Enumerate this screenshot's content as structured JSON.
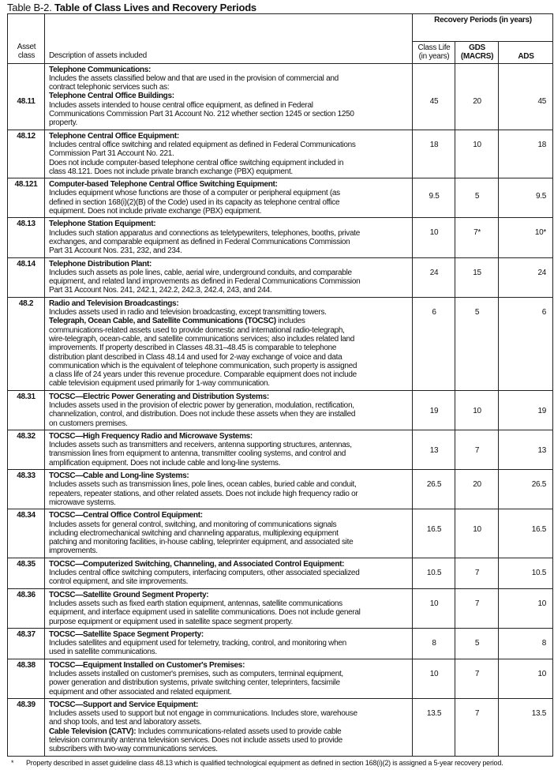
{
  "table_label": "Table B-2.",
  "table_title": "Table of Class Lives and Recovery Periods",
  "headers": {
    "asset_class": "Asset class",
    "description": "Description of assets included",
    "recovery_periods": "Recovery Periods (in years)",
    "class_life": "Class Life (in years)",
    "gds": "GDS (MACRS)",
    "ads": "ADS"
  },
  "rows": [
    {
      "asset_class": "48.11",
      "class_life": "45",
      "gds": "20",
      "ads": "45",
      "lines": [
        [
          {
            "b": true,
            "t": "Telephone Communications:"
          }
        ],
        [
          {
            "b": false,
            "t": "Includes the assets classified below and that are used in the provision of commercial and"
          }
        ],
        [
          {
            "b": false,
            "t": "contract telephonic services such as:"
          }
        ],
        [
          {
            "b": true,
            "t": "Telephone Central Office Buildings:"
          }
        ],
        [
          {
            "b": false,
            "t": "Includes assets intended to house central office equipment, as defined in Federal"
          }
        ],
        [
          {
            "b": false,
            "t": "Communications Commission Part 31 Account No. 212 whether section 1245 or section 1250"
          }
        ],
        [
          {
            "b": false,
            "t": "property."
          }
        ]
      ]
    },
    {
      "asset_class": "48.12",
      "class_life": "18",
      "gds": "10",
      "ads": "18",
      "lines": [
        [
          {
            "b": true,
            "t": "Telephone Central Office Equipment:"
          }
        ],
        [
          {
            "b": false,
            "t": "Includes central office switching and related equipment as defined in Federal Communications"
          }
        ],
        [
          {
            "b": false,
            "t": "Commission Part 31 Account No. 221."
          }
        ],
        [
          {
            "b": false,
            "t": "Does not include computer-based telephone central office switching equipment included in"
          }
        ],
        [
          {
            "b": false,
            "t": "class 48.121. Does not include private branch exchange (PBX) equipment."
          }
        ]
      ]
    },
    {
      "asset_class": "48.121",
      "class_life": "9.5",
      "gds": "5",
      "ads": "9.5",
      "lines": [
        [
          {
            "b": true,
            "t": "Computer-based Telephone Central Office Switching Equipment:"
          }
        ],
        [
          {
            "b": false,
            "t": "Includes equipment whose functions are those of a computer or peripheral equipment (as"
          }
        ],
        [
          {
            "b": false,
            "t": "defined in section 168(i)(2)(B) of the Code) used in its capacity as telephone central office"
          }
        ],
        [
          {
            "b": false,
            "t": "equipment. Does not include private exchange (PBX) equipment."
          }
        ]
      ]
    },
    {
      "asset_class": "48.13",
      "class_life": "10",
      "gds": "7*",
      "ads": "10*",
      "lines": [
        [
          {
            "b": true,
            "t": "Telephone Station Equipment:"
          }
        ],
        [
          {
            "b": false,
            "t": "Includes such station apparatus and connections as teletypewriters, telephones, booths, private"
          }
        ],
        [
          {
            "b": false,
            "t": "exchanges, and comparable equipment as defined in Federal Communications Commission"
          }
        ],
        [
          {
            "b": false,
            "t": "Part 31 Account Nos. 231, 232, and 234."
          }
        ]
      ]
    },
    {
      "asset_class": "48.14",
      "class_life": "24",
      "gds": "15",
      "ads": "24",
      "lines": [
        [
          {
            "b": true,
            "t": "Telephone Distribution Plant:"
          }
        ],
        [
          {
            "b": false,
            "t": "Includes such assets as pole lines, cable, aerial wire, underground conduits, and comparable"
          }
        ],
        [
          {
            "b": false,
            "t": "equipment, and related land improvements as defined in Federal Communications Commission"
          }
        ],
        [
          {
            "b": false,
            "t": "Part 31 Account Nos. 241, 242.1, 242.2, 242.3, 242.4, 243, and 244."
          }
        ]
      ]
    },
    {
      "asset_class": "48.2",
      "class_life": "6",
      "gds": "5",
      "ads": "6",
      "lines": [
        [
          {
            "b": true,
            "t": "Radio and Television Broadcastings:"
          }
        ],
        [
          {
            "b": false,
            "t": "Includes assets used in radio and television broadcasting, except transmitting towers."
          }
        ],
        [
          {
            "b": true,
            "t": "Telegraph, Ocean Cable, and Satellite Communications (TOCSC)"
          },
          {
            "b": false,
            "t": " includes"
          }
        ],
        [
          {
            "b": false,
            "t": "communications-related assets used to provide domestic and international radio-telegraph,"
          }
        ],
        [
          {
            "b": false,
            "t": "wire-telegraph, ocean-cable, and satellite communications services; also includes related land"
          }
        ],
        [
          {
            "b": false,
            "t": "improvements. If property described in Classes 48.31–48.45 is comparable to telephone"
          }
        ],
        [
          {
            "b": false,
            "t": "distribution plant described in Class 48.14 and used for 2-way exchange of voice and data"
          }
        ],
        [
          {
            "b": false,
            "t": "communication which is the equivalent of telephone communication, such property is assigned"
          }
        ],
        [
          {
            "b": false,
            "t": "a class life of 24 years under this revenue procedure. Comparable equipment does not include"
          }
        ],
        [
          {
            "b": false,
            "t": "cable television equipment used primarily for 1-way communication."
          }
        ]
      ]
    },
    {
      "asset_class": "48.31",
      "class_life": "19",
      "gds": "10",
      "ads": "19",
      "lines": [
        [
          {
            "b": true,
            "t": "TOCSC—Electric Power Generating and Distribution Systems:"
          }
        ],
        [
          {
            "b": false,
            "t": "Includes assets used in the provision of electric power by generation, modulation, rectification,"
          }
        ],
        [
          {
            "b": false,
            "t": "channelization, control, and distribution. Does not include these assets when they are installed"
          }
        ],
        [
          {
            "b": false,
            "t": "on customers premises."
          }
        ]
      ]
    },
    {
      "asset_class": "48.32",
      "class_life": "13",
      "gds": "7",
      "ads": "13",
      "lines": [
        [
          {
            "b": true,
            "t": "TOCSC—High Frequency Radio and Microwave Systems:"
          }
        ],
        [
          {
            "b": false,
            "t": "Includes assets such as transmitters and receivers, antenna supporting structures, antennas,"
          }
        ],
        [
          {
            "b": false,
            "t": "transmission lines from equipment to antenna, transmitter cooling systems, and control and"
          }
        ],
        [
          {
            "b": false,
            "t": "amplification equipment. Does not include cable and long-line systems."
          }
        ]
      ]
    },
    {
      "asset_class": "48.33",
      "class_life": "26.5",
      "gds": "20",
      "ads": "26.5",
      "lines": [
        [
          {
            "b": true,
            "t": "TOCSC—Cable and Long-line Systems:"
          }
        ],
        [
          {
            "b": false,
            "t": "Includes assets such as transmission lines, pole lines, ocean cables, buried cable and conduit,"
          }
        ],
        [
          {
            "b": false,
            "t": "repeaters, repeater stations, and other related assets. Does not include high frequency radio or"
          }
        ],
        [
          {
            "b": false,
            "t": "microwave systems."
          }
        ]
      ]
    },
    {
      "asset_class": "48.34",
      "class_life": "16.5",
      "gds": "10",
      "ads": "16.5",
      "lines": [
        [
          {
            "b": true,
            "t": "TOCSC—Central Office Control Equipment:"
          }
        ],
        [
          {
            "b": false,
            "t": "Includes assets for general control, switching, and monitoring of communications signals"
          }
        ],
        [
          {
            "b": false,
            "t": "including electromechanical switching and channeling apparatus, multiplexing equipment"
          }
        ],
        [
          {
            "b": false,
            "t": "patching and monitoring facilities, in-house cabling, teleprinter equipment, and associated site"
          }
        ],
        [
          {
            "b": false,
            "t": "improvements."
          }
        ]
      ]
    },
    {
      "asset_class": "48.35",
      "class_life": "10.5",
      "gds": "7",
      "ads": "10.5",
      "lines": [
        [
          {
            "b": true,
            "t": "TOCSC—Computerized Switching, Channeling, and Associated Control Equipment:"
          }
        ],
        [
          {
            "b": false,
            "t": "Includes central office switching computers, interfacing computers, other associated specialized"
          }
        ],
        [
          {
            "b": false,
            "t": "control equipment, and site improvements."
          }
        ]
      ]
    },
    {
      "asset_class": "48.36",
      "class_life": "10",
      "gds": "7",
      "ads": "10",
      "lines": [
        [
          {
            "b": true,
            "t": "TOCSC—Satellite Ground Segment Property:"
          }
        ],
        [
          {
            "b": false,
            "t": "Includes assets such as fixed earth station equipment, antennas, satellite communications"
          }
        ],
        [
          {
            "b": false,
            "t": "equipment, and interface equipment used in satellite communications. Does not include general"
          }
        ],
        [
          {
            "b": false,
            "t": "purpose equipment or equipment used in satellite space segment property."
          }
        ]
      ]
    },
    {
      "asset_class": "48.37",
      "class_life": "8",
      "gds": "5",
      "ads": "8",
      "lines": [
        [
          {
            "b": true,
            "t": "TOCSC—Satellite Space Segment Property:"
          }
        ],
        [
          {
            "b": false,
            "t": "Includes satellites and equipment used for telemetry, tracking, control, and monitoring when"
          }
        ],
        [
          {
            "b": false,
            "t": "used in satellite communications."
          }
        ]
      ]
    },
    {
      "asset_class": "48.38",
      "class_life": "10",
      "gds": "7",
      "ads": "10",
      "lines": [
        [
          {
            "b": true,
            "t": "TOCSC—Equipment Installed on Customer's Premises:"
          }
        ],
        [
          {
            "b": false,
            "t": "Includes assets installed on customer's premises, such as computers, terminal equipment,"
          }
        ],
        [
          {
            "b": false,
            "t": "power generation and distribution systems, private switching center, teleprinters, facsimile"
          }
        ],
        [
          {
            "b": false,
            "t": "equipment and other associated and related equipment."
          }
        ]
      ]
    },
    {
      "asset_class": "48.39",
      "class_life": "13.5",
      "gds": "7",
      "ads": "13.5",
      "lines": [
        [
          {
            "b": true,
            "t": "TOCSC—Support and Service Equipment:"
          }
        ],
        [
          {
            "b": false,
            "t": "Includes assets used to support but not engage in communications. Includes store, warehouse"
          }
        ],
        [
          {
            "b": false,
            "t": "and shop tools, and test and laboratory assets."
          }
        ],
        [
          {
            "b": true,
            "t": "Cable Television (CATV):"
          },
          {
            "b": false,
            "t": " Includes communications-related assets used to provide cable"
          }
        ],
        [
          {
            "b": false,
            "t": "television community antenna television services. Does not include assets used to provide"
          }
        ],
        [
          {
            "b": false,
            "t": "subscribers with two-way communications services."
          }
        ]
      ]
    }
  ],
  "footnote": {
    "mark": "*",
    "text": "Property described in asset guideline class 48.13 which is qualified technological equipment as defined in section 168(i)(2) is assigned a 5-year recovery period."
  }
}
